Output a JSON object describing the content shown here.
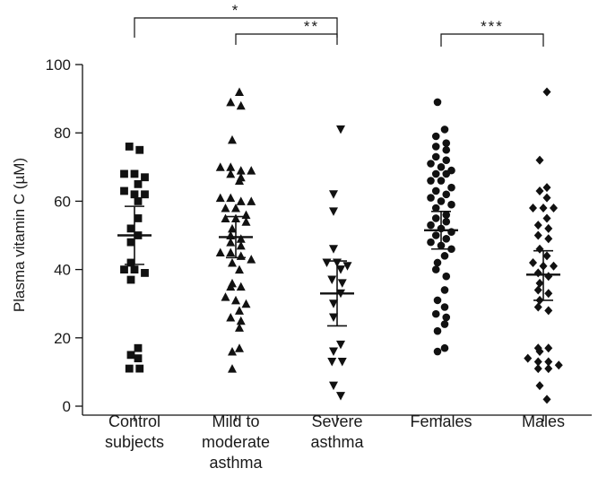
{
  "chart_data": {
    "type": "scatter",
    "subtype": "dot-plot",
    "title": "",
    "ylabel": "Plasma vitamin C (µM)",
    "ylim": [
      0,
      100
    ],
    "yticks": [
      0,
      20,
      40,
      60,
      80,
      100
    ],
    "grid": false,
    "legend": "none",
    "categories": [
      {
        "lines": [
          "Control",
          "subjects"
        ]
      },
      {
        "lines": [
          "Mild to",
          "moderate",
          "asthma"
        ]
      },
      {
        "lines": [
          "Severe",
          "asthma"
        ]
      },
      {
        "lines": [
          "Females"
        ]
      },
      {
        "lines": [
          "Males"
        ]
      }
    ],
    "series": [
      {
        "marker": "square",
        "values": [
          76,
          75,
          68,
          68,
          67,
          65,
          63,
          62,
          62,
          60,
          55,
          52,
          50,
          48,
          42,
          40,
          40,
          39,
          37,
          17,
          15,
          14,
          11,
          11
        ],
        "mean": 50,
        "ci_low": 41.5,
        "ci_high": 58.5
      },
      {
        "marker": "triangle-up",
        "values": [
          92,
          89,
          88,
          78,
          70,
          70,
          69,
          69,
          68,
          67,
          66,
          61,
          61,
          60,
          60,
          58,
          58,
          56,
          55,
          55,
          54,
          52,
          50,
          49,
          48,
          47,
          45,
          45,
          44,
          43,
          42,
          40,
          36,
          35,
          35,
          32,
          31,
          30,
          28,
          26,
          25,
          23,
          17,
          16,
          11
        ],
        "mean": 49.5,
        "ci_low": 43.5,
        "ci_high": 55.5
      },
      {
        "marker": "triangle-down",
        "values": [
          81,
          62,
          57,
          46,
          42,
          42,
          41,
          40,
          37,
          36,
          33,
          30,
          26,
          18,
          16,
          13,
          13,
          6,
          3
        ],
        "mean": 33,
        "ci_low": 23.5,
        "ci_high": 42.5
      },
      {
        "marker": "circle",
        "values": [
          89,
          81,
          79,
          77,
          76,
          75,
          73,
          72,
          71,
          70,
          69,
          68,
          68,
          66,
          66,
          64,
          63,
          62,
          61,
          60,
          59,
          58,
          56,
          55,
          54,
          53,
          52,
          51,
          50,
          49,
          48,
          47,
          46,
          44,
          42,
          40,
          38,
          34,
          31,
          29,
          27,
          26,
          24,
          22,
          17,
          16
        ],
        "mean": 51.5,
        "ci_low": 46,
        "ci_high": 57
      },
      {
        "marker": "diamond",
        "values": [
          92,
          72,
          64,
          63,
          61,
          58,
          58,
          58,
          55,
          53,
          52,
          50,
          49,
          46,
          44,
          42,
          41,
          41,
          39,
          38,
          36,
          34,
          33,
          31,
          29,
          28,
          17,
          17,
          16,
          14,
          13,
          13,
          12,
          11,
          11,
          6,
          2
        ],
        "mean": 38.5,
        "ci_low": 31,
        "ci_high": 45.5
      }
    ],
    "significance": [
      {
        "from": 0,
        "to": 2,
        "label": "*"
      },
      {
        "from": 1,
        "to": 2,
        "label": "**"
      },
      {
        "from": 3,
        "to": 4,
        "label": "***"
      }
    ]
  }
}
